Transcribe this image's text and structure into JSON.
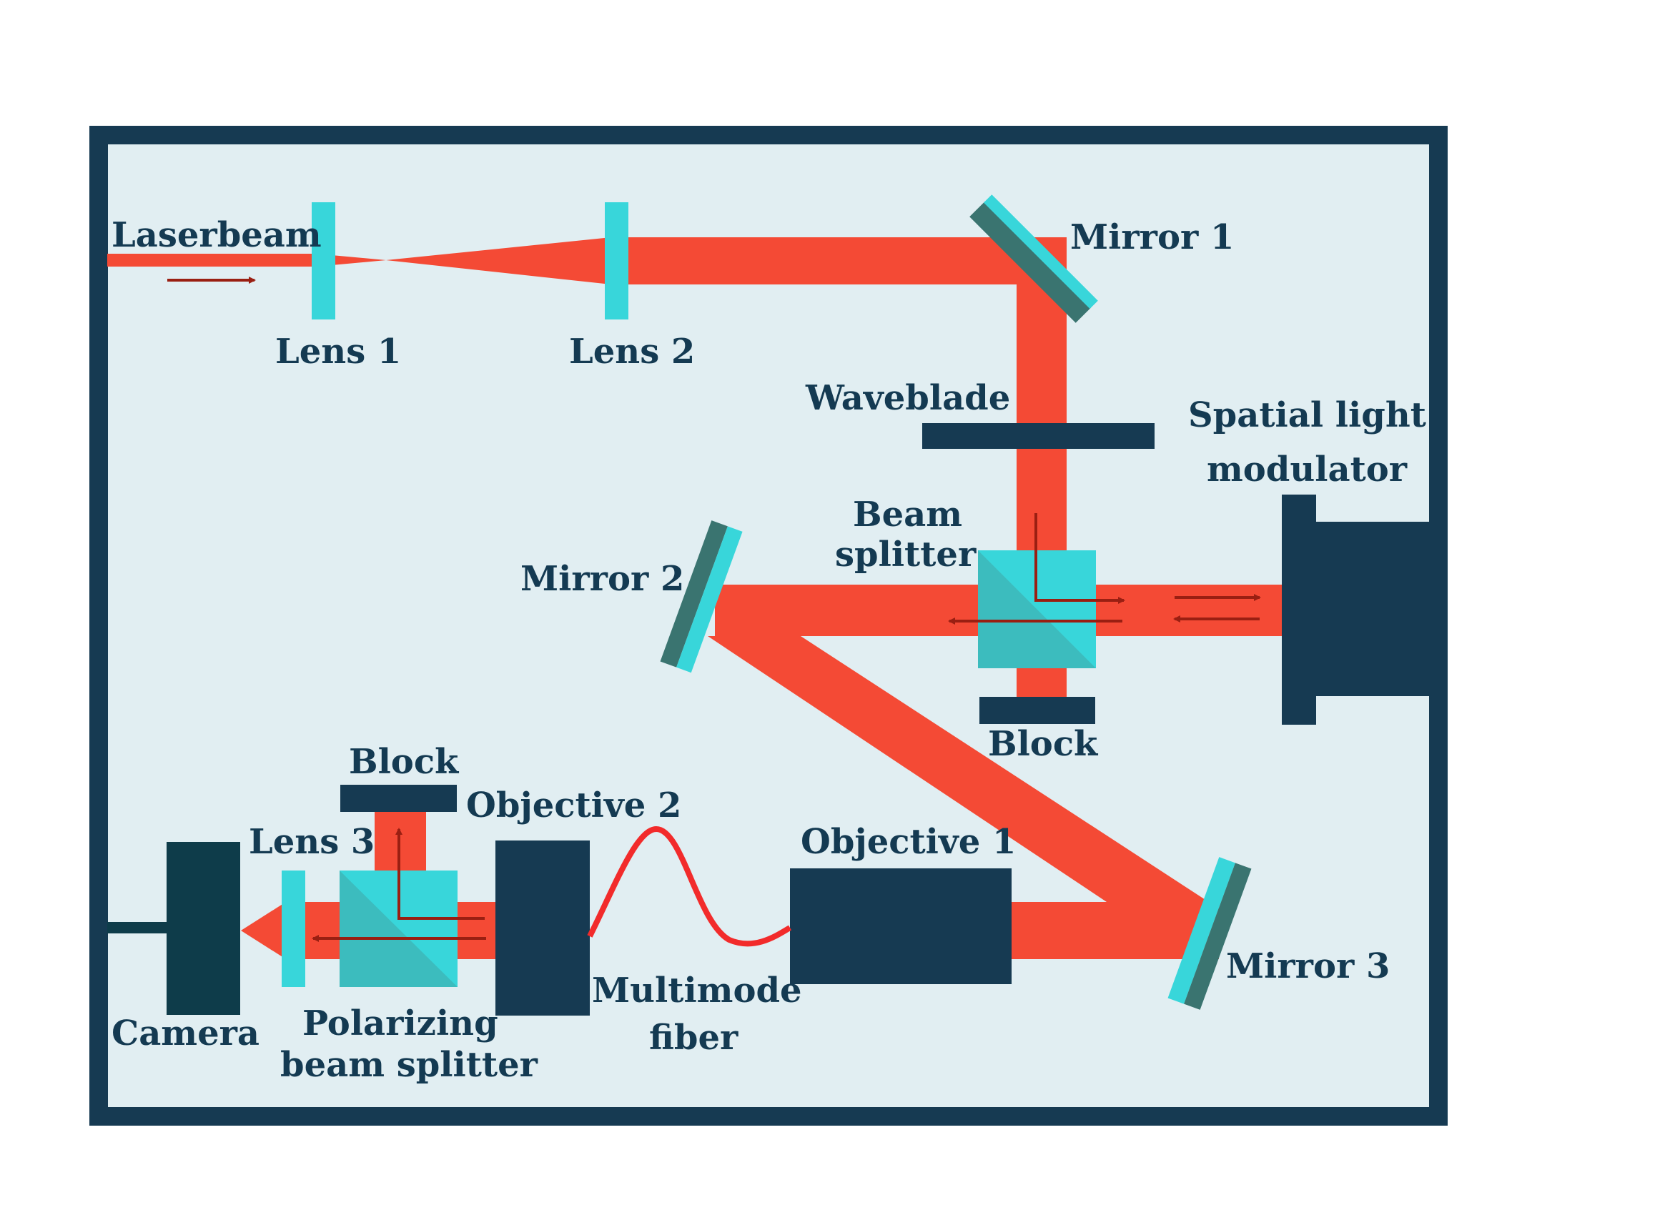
{
  "labels": {
    "laserbeam": "Laserbeam",
    "lens1": "Lens 1",
    "lens2": "Lens 2",
    "lens3": "Lens 3",
    "mirror1": "Mirror 1",
    "mirror2": "Mirror 2",
    "mirror3": "Mirror 3",
    "waveblade": "Waveblade",
    "slm_line1": "Spatial light",
    "slm_line2": "modulator",
    "beam_splitter_line1": "Beam",
    "beam_splitter_line2": "splitter",
    "block_top": "Block",
    "block_bottom": "Block",
    "objective1": "Objective 1",
    "objective2": "Objective 2",
    "fiber_line1": "Multimode",
    "fiber_line2": "fiber",
    "camera": "Camera",
    "pbs_line1": "Polarizing",
    "pbs_line2": "beam splitter"
  },
  "colors": {
    "frame": "#163a52",
    "background": "#e1eef2",
    "beam": "#f44a35",
    "arrow": "#9a1f12",
    "optic_cyan": "#38d6da",
    "mirror_dark": "#3a7470",
    "cube_shade": "#3cbcbe",
    "device": "#163a52",
    "camera": "#0e3c4a",
    "fiber": "#f22b2b"
  }
}
